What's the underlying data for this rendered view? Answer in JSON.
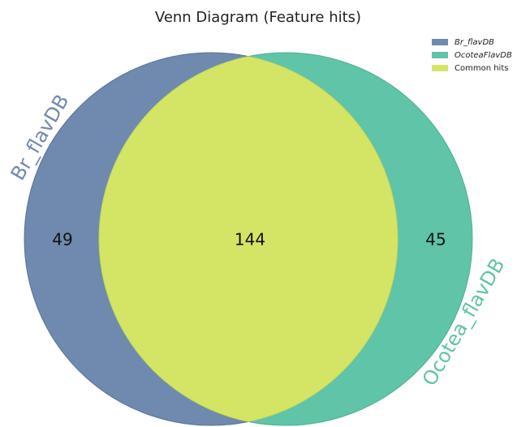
{
  "chart_data": {
    "type": "venn",
    "title": "Venn Diagram (Feature hits)",
    "sets": [
      {
        "name": "Br_flavDB",
        "label": "Br_flavDB",
        "color": "#6f8aae",
        "value": 49
      },
      {
        "name": "OcoteaFlavDB",
        "label": "Ocotea_flavDB",
        "color": "#5fc4a8",
        "value": 45
      }
    ],
    "intersection": {
      "name": "Common hits",
      "color": "#d4e566",
      "value": 144
    }
  }
}
